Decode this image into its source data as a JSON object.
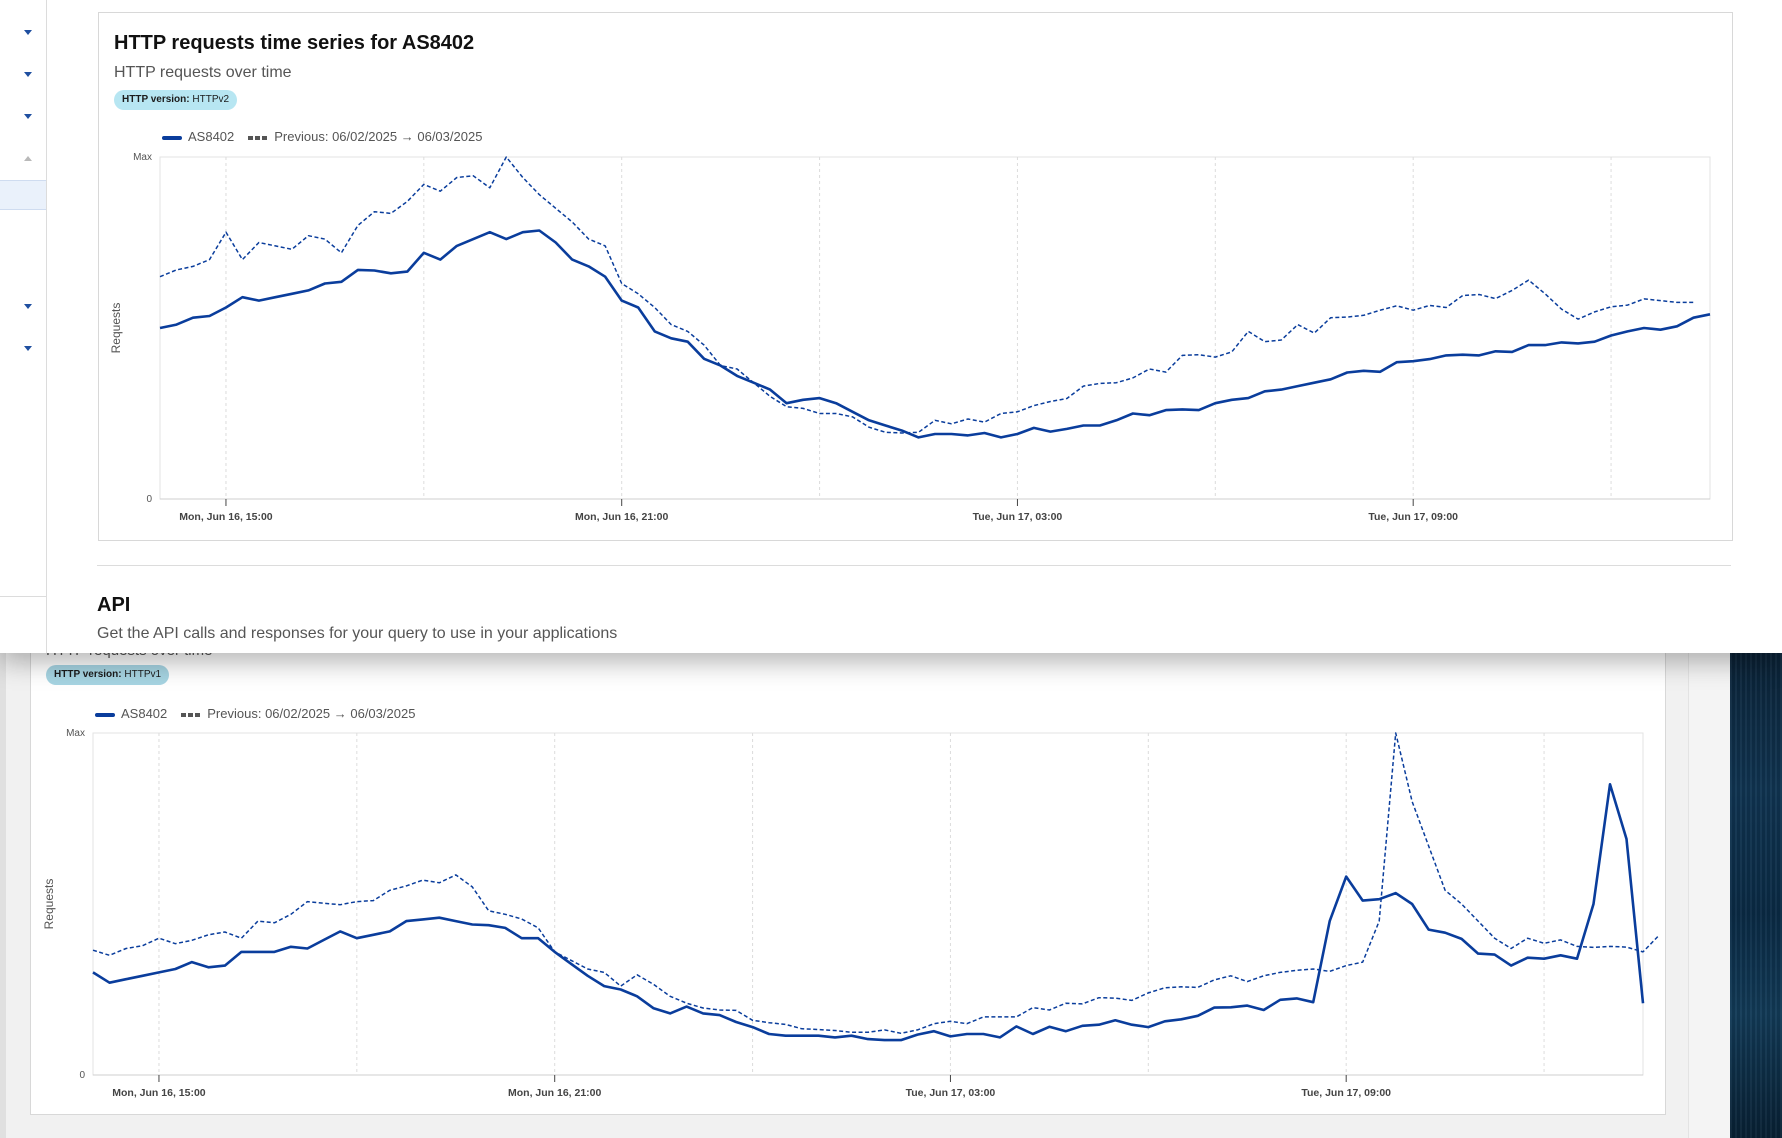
{
  "api": {
    "title": "API",
    "subtitle": "Get the API calls and responses for your query to use in your applications"
  },
  "back_partial_subtitle": "HTTP requests over time",
  "colors": {
    "series": "#0a3d9c",
    "previous": "#0a3d9c",
    "badge_v2": "#b7e6f2",
    "badge_v1": "#a6d4e2"
  },
  "sidebar_icons": [
    "chevron-down-icon",
    "chevron-down-icon",
    "chevron-down-icon",
    "chevron-up-icon",
    "chevron-down-icon",
    "chevron-down-icon"
  ],
  "chart_data": [
    {
      "type": "line",
      "title": "HTTP requests time series for AS8402",
      "subtitle": "HTTP requests over time",
      "filter": {
        "key": "HTTP version:",
        "value": "HTTPv2"
      },
      "legend": {
        "current": "AS8402",
        "previous": "Previous: 06/02/2025 → 06/03/2025",
        "placement": "top-left"
      },
      "ylabel": "Requests",
      "ytick_labels": [
        "0",
        "Max"
      ],
      "ylim": [
        0,
        100
      ],
      "xtick_labels": [
        "Mon, Jun 16, 15:00",
        "Mon, Jun 16, 21:00",
        "Tue, Jun 17, 03:00",
        "Tue, Jun 17, 09:00"
      ],
      "x_start_hour": 14,
      "x_step_hours": 0.25,
      "grid": true,
      "series": [
        {
          "name": "AS8402",
          "style": "solid",
          "values": [
            50,
            51,
            53,
            53.5,
            56,
            59,
            58,
            59,
            60,
            61,
            63,
            63.5,
            67,
            66.8,
            66,
            66.5,
            72,
            70,
            74,
            76,
            78,
            76,
            78,
            78.5,
            75,
            70,
            68,
            65,
            58,
            56,
            49,
            47,
            46,
            41,
            39,
            36,
            34,
            32,
            28,
            29,
            29.5,
            28,
            25.5,
            23,
            21.5,
            20,
            18,
            19,
            19,
            18.6,
            19.3,
            18,
            19,
            20.8,
            19.7,
            20.5,
            21.5,
            21.5,
            23,
            25,
            24.5,
            26,
            26.2,
            26,
            28,
            29,
            29.5,
            31.5,
            32,
            33,
            34,
            35,
            37,
            37.5,
            37.2,
            40,
            40.3,
            40.9,
            42,
            42.2,
            42,
            43.2,
            43,
            45,
            45,
            45.8,
            45.5,
            46,
            47.8,
            49,
            50,
            49.5,
            50.5,
            53,
            54
          ]
        },
        {
          "name": "Previous: 06/02/2025 → 06/03/2025",
          "style": "dashed",
          "values": [
            65,
            67,
            68,
            70,
            78,
            70,
            75,
            74,
            73,
            77,
            76,
            72,
            80,
            84,
            83.5,
            87,
            92,
            90,
            94,
            94.5,
            91,
            100,
            94,
            89,
            85,
            81,
            76,
            74,
            63,
            60,
            56,
            51,
            49,
            45,
            39,
            38,
            34,
            30,
            27,
            26.5,
            25,
            25,
            24,
            21,
            19.5,
            19.3,
            19.5,
            23,
            22,
            23.4,
            22.5,
            25,
            25.5,
            27.3,
            28.5,
            29.4,
            33,
            33.8,
            34,
            35.4,
            38,
            37.1,
            42,
            42.2,
            41.5,
            43,
            49,
            46,
            46.5,
            51,
            48.5,
            53,
            53.2,
            53.7,
            55.2,
            56.5,
            55.2,
            56.6,
            56,
            59.5,
            59.8,
            58.6,
            61,
            64,
            60,
            55.5,
            52.6,
            54.7,
            56.2,
            56.7,
            58.5,
            58,
            57.5,
            57.5
          ]
        }
      ]
    },
    {
      "type": "line",
      "title": "",
      "subtitle": "HTTP requests over time",
      "filter": {
        "key": "HTTP version:",
        "value": "HTTPv1"
      },
      "legend": {
        "current": "AS8402",
        "previous": "Previous: 06/02/2025 → 06/03/2025",
        "placement": "top-left"
      },
      "ylabel": "Requests",
      "ytick_labels": [
        "0",
        "Max"
      ],
      "ylim": [
        0,
        100
      ],
      "xtick_labels": [
        "Mon, Jun 16, 15:00",
        "Mon, Jun 16, 21:00",
        "Tue, Jun 17, 03:00",
        "Tue, Jun 17, 09:00"
      ],
      "x_start_hour": 14,
      "x_step_hours": 0.25,
      "grid": true,
      "series": [
        {
          "name": "AS8402",
          "style": "solid",
          "values": [
            30,
            27,
            28,
            29,
            30,
            31,
            33,
            31.5,
            32,
            36,
            36,
            36,
            37.5,
            37,
            39.5,
            42,
            40,
            41,
            42,
            45,
            45.5,
            46,
            45,
            44,
            43.8,
            43,
            40,
            40,
            36,
            32.5,
            29,
            26,
            25,
            23,
            19.5,
            18,
            20,
            18,
            17.5,
            15.5,
            14,
            12,
            11.5,
            11.5,
            11.5,
            11,
            11.5,
            10.5,
            10.2,
            10.2,
            11.8,
            12.8,
            11.3,
            12,
            12,
            11,
            14.2,
            12,
            14.1,
            12.8,
            14.4,
            14.7,
            16,
            14.7,
            14,
            15.7,
            16.3,
            17.3,
            19.7,
            19.8,
            20.3,
            19,
            22,
            22.4,
            21.3,
            45,
            58,
            51,
            51.4,
            53.2,
            50,
            42.5,
            41.6,
            39.8,
            35.5,
            35.2,
            32,
            34.3,
            34,
            35,
            34,
            50,
            85,
            69,
            21
          ]
        },
        {
          "name": "Previous: 06/02/2025 → 06/03/2025",
          "style": "dashed",
          "values": [
            36.5,
            35,
            37,
            37.8,
            40,
            38.4,
            39.4,
            41,
            41.8,
            40,
            45,
            44.5,
            47,
            50.7,
            50.2,
            49.8,
            50.7,
            51,
            54,
            55.3,
            57,
            56.2,
            58.5,
            55,
            48,
            47,
            45.6,
            43,
            36,
            33.5,
            31,
            30,
            26,
            29.3,
            26.5,
            23,
            21,
            19.6,
            19,
            18.9,
            16,
            15.3,
            14.8,
            13.5,
            13.3,
            13,
            12.5,
            12.5,
            13.2,
            12.2,
            13.2,
            15,
            15.7,
            15,
            17,
            17,
            17,
            19.7,
            19,
            21,
            20.8,
            22.6,
            22.5,
            21.8,
            24,
            25.5,
            25.8,
            25.6,
            27.8,
            29,
            27.3,
            29,
            30,
            30.6,
            31,
            30.3,
            32,
            33,
            45,
            100,
            80,
            67,
            54,
            50,
            45,
            40,
            37,
            40,
            38.5,
            39.5,
            37.6,
            37.3,
            37.6,
            37.4,
            36,
            41
          ]
        }
      ]
    }
  ]
}
